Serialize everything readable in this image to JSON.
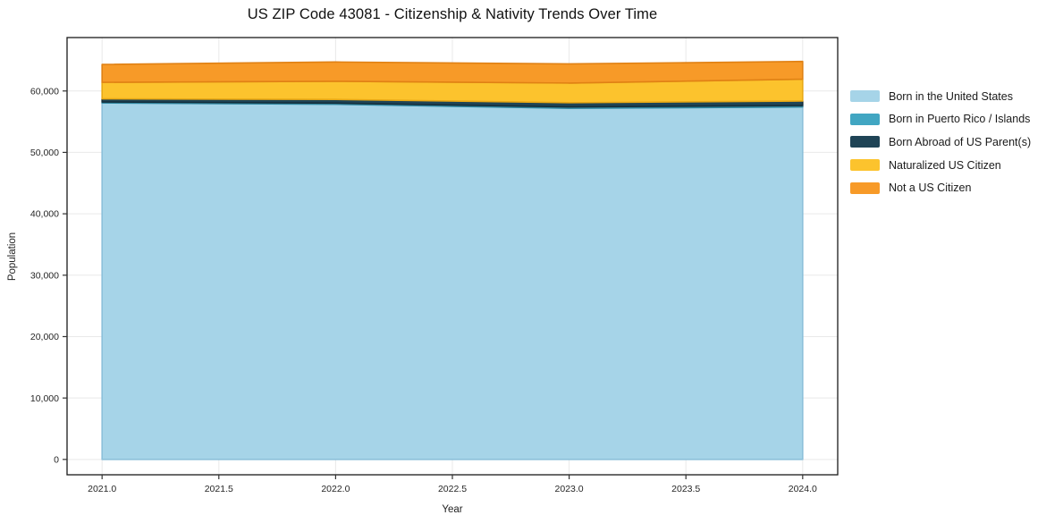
{
  "chart_data": {
    "type": "area",
    "stacked": true,
    "title": "US ZIP Code 43081 - Citizenship & Nativity Trends Over Time",
    "xlabel": "Year",
    "ylabel": "Population",
    "x": [
      2021,
      2022,
      2023,
      2024
    ],
    "series": [
      {
        "name": "Born in the United States",
        "color": "#a6d4e8",
        "edge": "#8cc0da",
        "values": [
          58060,
          57840,
          57180,
          57400
        ]
      },
      {
        "name": "Born in Puerto Rico / Islands",
        "color": "#41a6c2",
        "edge": "#2f87a0",
        "values": [
          150,
          180,
          220,
          230
        ]
      },
      {
        "name": "Born Abroad of US Parent(s)",
        "color": "#1f4456",
        "edge": "#152f3c",
        "values": [
          510,
          600,
          690,
          730
        ]
      },
      {
        "name": "Naturalized US Citizen",
        "color": "#fcc32d",
        "edge": "#e9a915",
        "values": [
          2690,
          2960,
          3200,
          3560
        ]
      },
      {
        "name": "Not a US Citizen",
        "color": "#f79a28",
        "edge": "#e08114",
        "values": [
          2910,
          3140,
          3120,
          2890
        ]
      }
    ],
    "totals": [
      64320,
      64720,
      64410,
      64810
    ],
    "xlim": [
      2020.85,
      2024.15
    ],
    "ylim": [
      -2500,
      68700
    ],
    "xticks": [
      2021.0,
      2021.5,
      2022.0,
      2022.5,
      2023.0,
      2023.5,
      2024.0
    ],
    "yticks": [
      0,
      10000,
      20000,
      30000,
      40000,
      50000,
      60000
    ],
    "grid": true,
    "grid_color": "#e9e9e9",
    "spine_color": "#1a1a1a",
    "tick_color": "#333333",
    "tick_label_color": "#262626",
    "legend_position": "right"
  }
}
